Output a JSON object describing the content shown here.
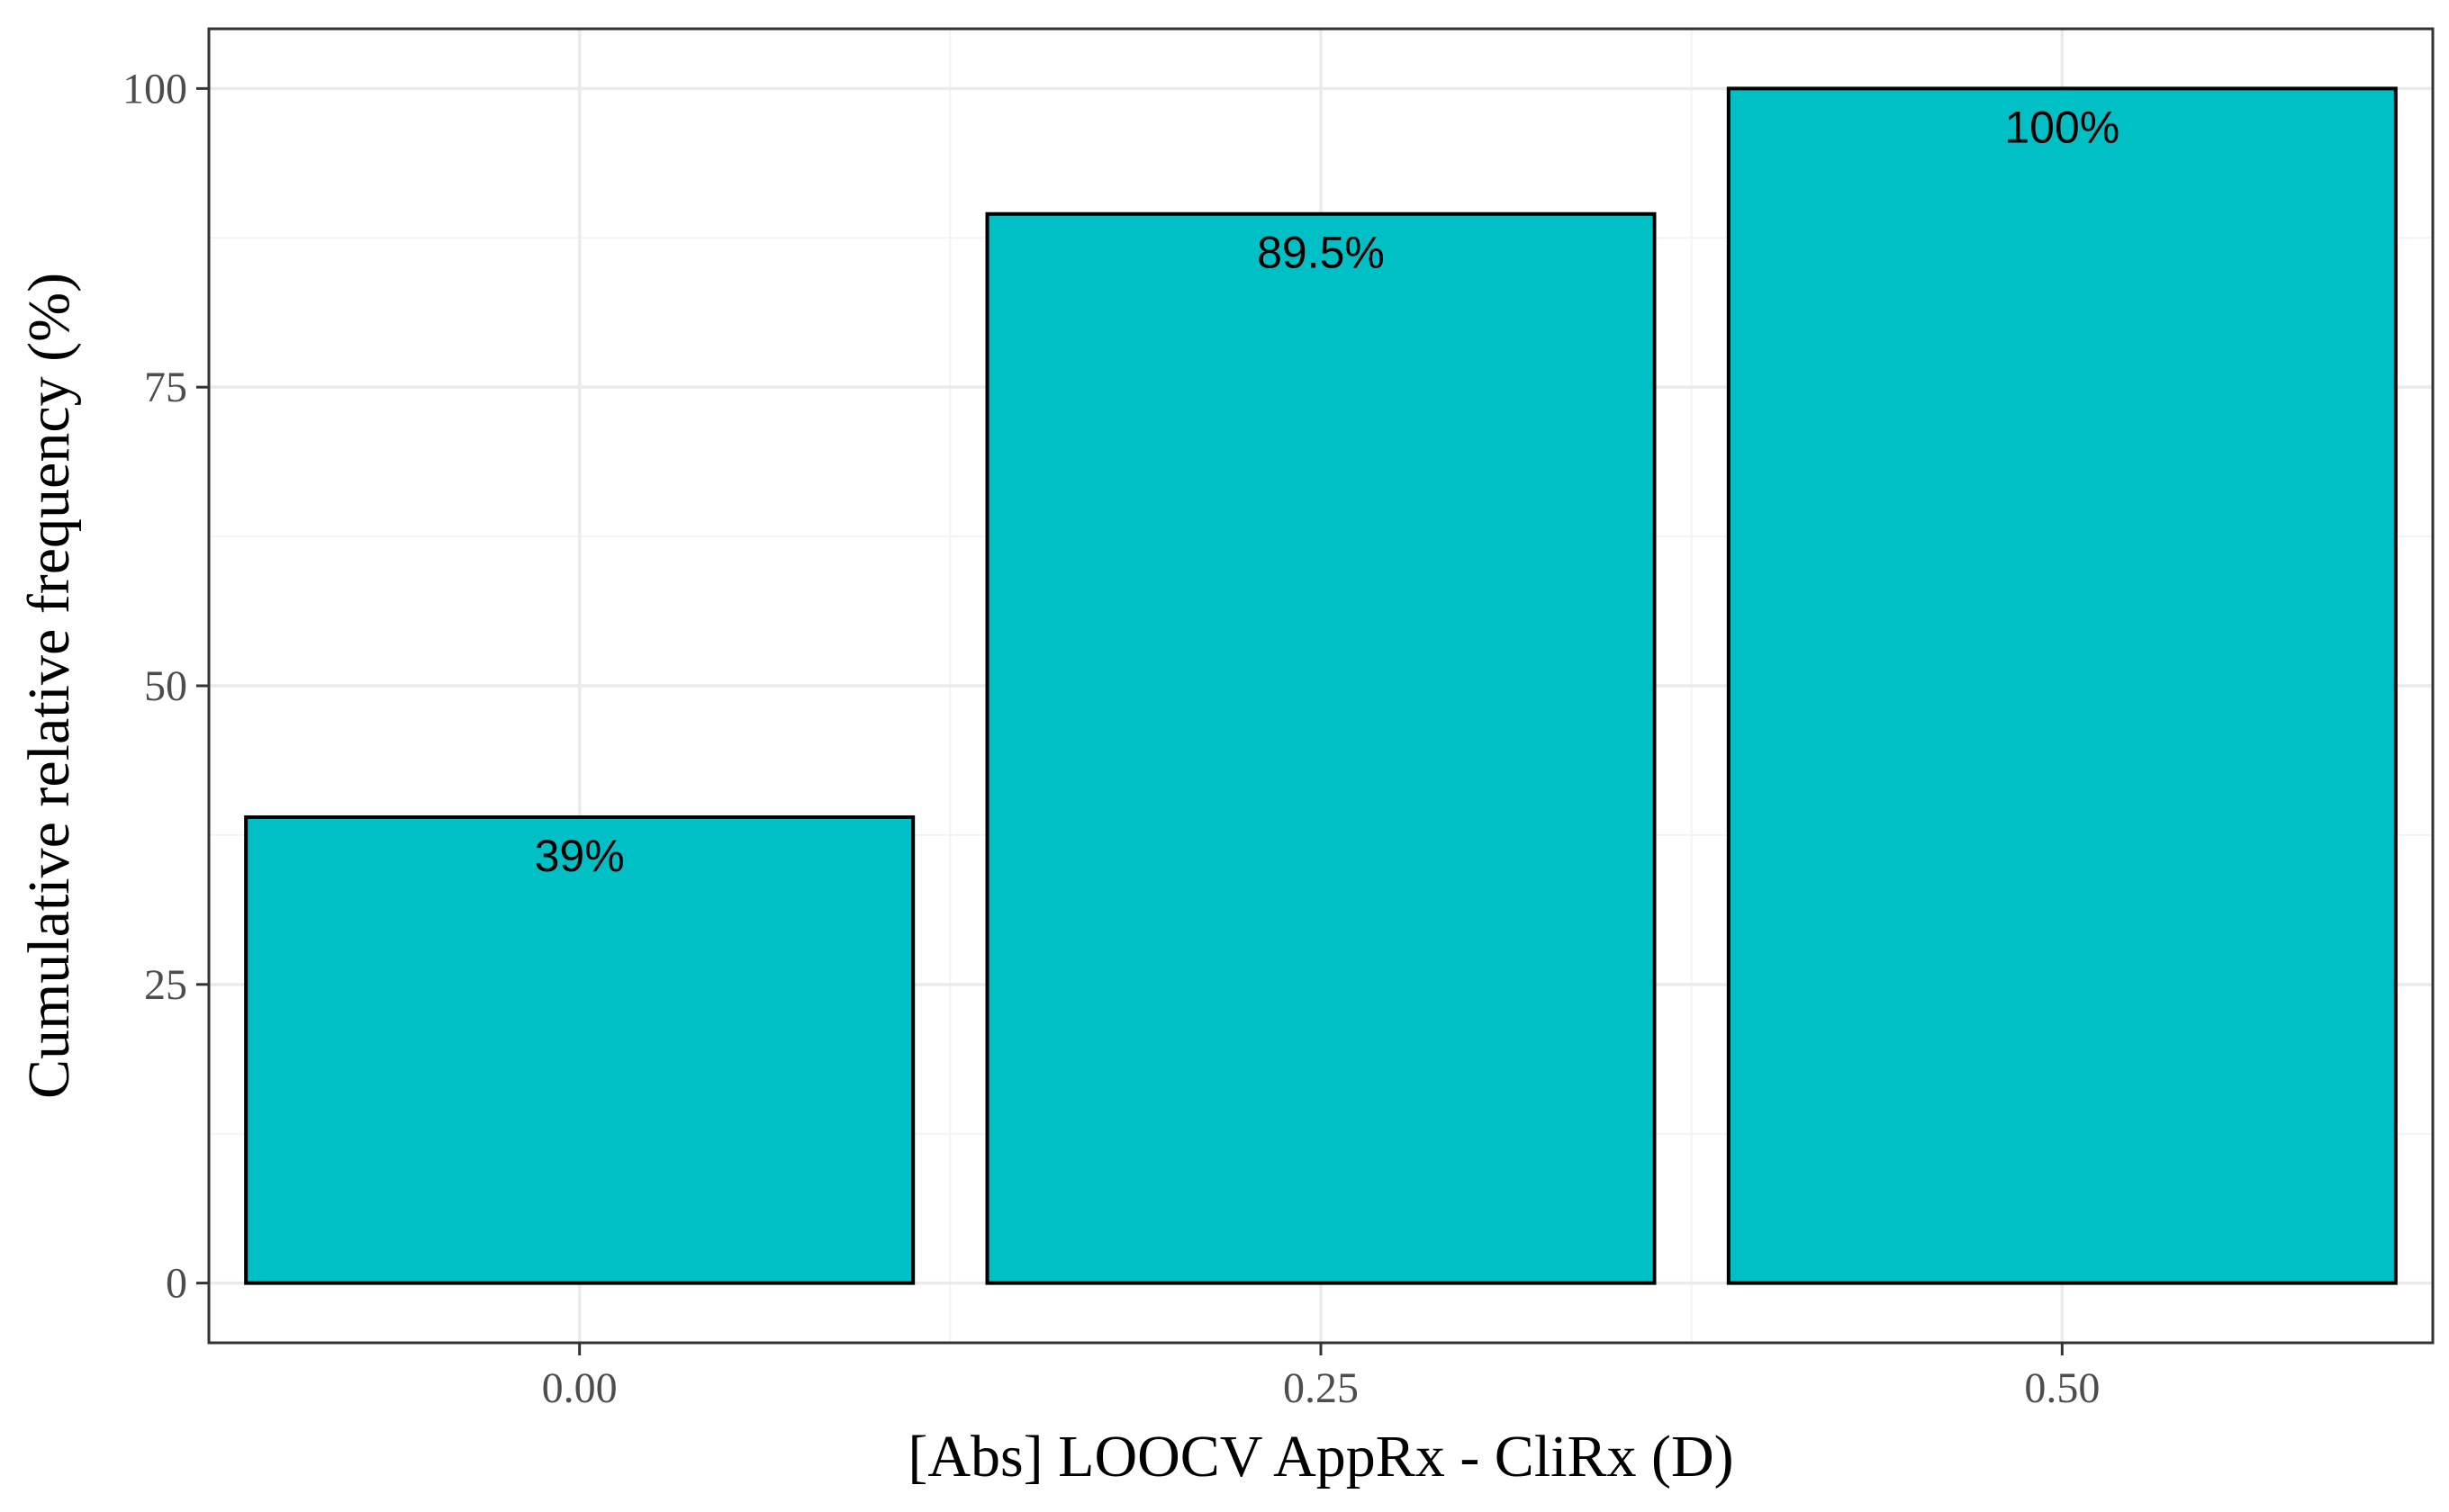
{
  "chart_data": {
    "type": "bar",
    "categories": [
      "0.00",
      "0.25",
      "0.50"
    ],
    "x": [
      0.0,
      0.25,
      0.5
    ],
    "values": [
      39,
      89.5,
      100
    ],
    "data_labels": [
      "39%",
      "89.5%",
      "100%"
    ],
    "xlabel": "[Abs] LOOCV AppRx - CliRx (D)",
    "ylabel": "Cumulative relative frequency (%)",
    "yticks": [
      0,
      25,
      50,
      75,
      100
    ],
    "ytick_labels": [
      "0",
      "25",
      "50",
      "75",
      "100"
    ],
    "xlim": [
      -0.125,
      0.625
    ],
    "ylim": [
      -5,
      105
    ],
    "bar_width": 0.225,
    "grid": true,
    "legend": "none",
    "bar_color": "#00C0C6",
    "bar_edge_color": "#000000"
  }
}
